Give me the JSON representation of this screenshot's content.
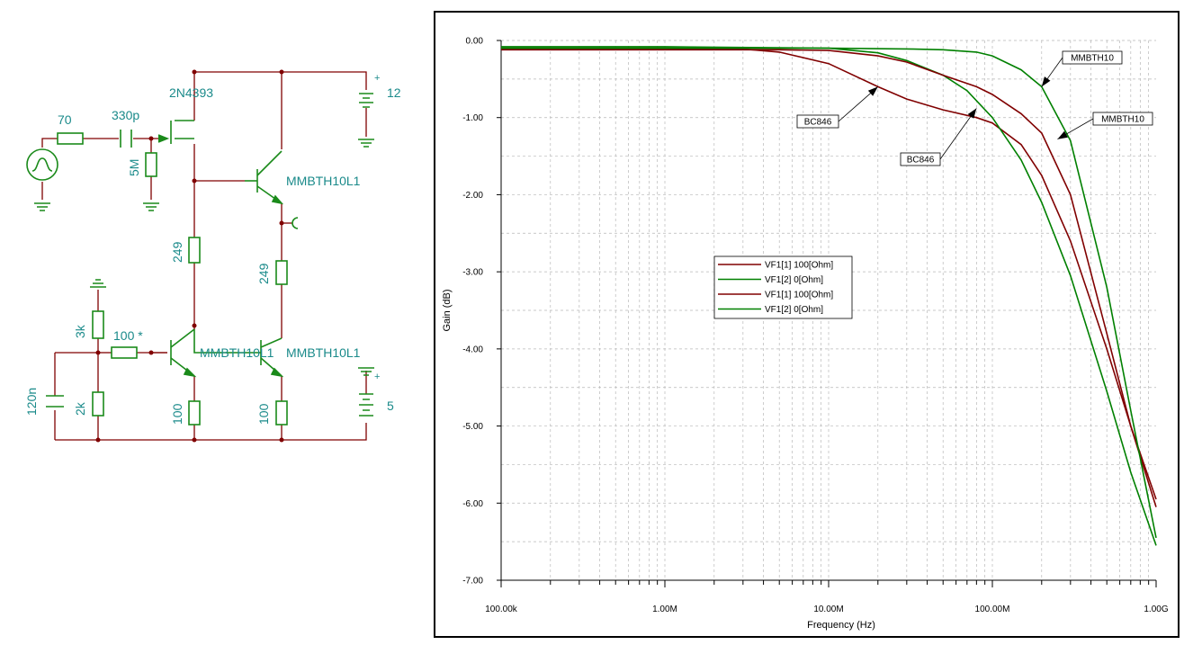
{
  "schematic": {
    "labels": {
      "source_resistor": "70",
      "coupling_cap": "330p",
      "gate_resistor": "5M",
      "fet": "2N4393",
      "supply_12": "12",
      "supply_5": "5",
      "q_follower": "MMBTH10L1",
      "r_249_left": "249",
      "r_249_right": "249",
      "r_3k": "3k",
      "r_2k": "2k",
      "r_100_star": "100 *",
      "cap_120n": "120n",
      "q_bottom_left": "MMBTH10L1",
      "q_bottom_right": "MMBTH10L1",
      "r_100_left": "100",
      "r_100_right": "100",
      "plus": "+"
    },
    "colors": {
      "wire": "#800000",
      "component": "#1a8a1a",
      "label": "#1a8a8a"
    }
  },
  "chart_data": {
    "type": "line",
    "xlabel": "Frequency (Hz)",
    "ylabel": "Gain (dB)",
    "xscale": "log",
    "xlim": [
      100000,
      1000000000
    ],
    "ylim": [
      -7.0,
      0.0
    ],
    "grid": true,
    "x_tick_labels": [
      "100.00k",
      "1.00M",
      "10.00M",
      "100.00M",
      "1.00G"
    ],
    "x_tick_values": [
      100000,
      1000000,
      10000000,
      100000000,
      1000000000
    ],
    "y_tick_labels": [
      "0.00",
      "-1.00",
      "-2.00",
      "-3.00",
      "-4.00",
      "-5.00",
      "-6.00",
      "-7.00"
    ],
    "y_tick_values": [
      0,
      -1,
      -2,
      -3,
      -4,
      -5,
      -6,
      -7
    ],
    "legend_placement": "center-left",
    "legend": [
      {
        "label": "VF1[1]  100[Ohm]",
        "color": "#800000"
      },
      {
        "label": "VF1[2]  0[Ohm]",
        "color": "#008000"
      },
      {
        "label": "VF1[1]  100[Ohm]",
        "color": "#800000"
      },
      {
        "label": "VF1[2]  0[Ohm]",
        "color": "#008000"
      }
    ],
    "series": [
      {
        "color": "#800000",
        "x": [
          100000,
          1000000,
          3000000,
          5000000,
          10000000,
          20000000,
          30000000,
          50000000,
          80000000,
          100000000,
          150000000,
          200000000,
          300000000,
          500000000,
          700000000,
          1000000000
        ],
        "y": [
          -0.1,
          -0.1,
          -0.11,
          -0.15,
          -0.3,
          -0.6,
          -0.76,
          -0.9,
          -1.0,
          -1.07,
          -1.35,
          -1.75,
          -2.6,
          -4.0,
          -5.0,
          -5.95
        ]
      },
      {
        "color": "#008000",
        "x": [
          100000,
          1000000,
          10000000,
          20000000,
          30000000,
          50000000,
          70000000,
          100000000,
          150000000,
          200000000,
          300000000,
          500000000,
          700000000,
          1000000000
        ],
        "y": [
          -0.08,
          -0.08,
          -0.1,
          -0.16,
          -0.26,
          -0.45,
          -0.65,
          -1.0,
          -1.55,
          -2.1,
          -3.05,
          -4.55,
          -5.6,
          -6.55
        ]
      },
      {
        "color": "#800000",
        "x": [
          100000,
          1000000,
          3000000,
          5000000,
          10000000,
          20000000,
          30000000,
          50000000,
          80000000,
          100000000,
          150000000,
          200000000,
          300000000,
          500000000,
          700000000,
          1000000000
        ],
        "y": [
          -0.12,
          -0.12,
          -0.12,
          -0.12,
          -0.13,
          -0.2,
          -0.28,
          -0.45,
          -0.6,
          -0.7,
          -0.95,
          -1.2,
          -2.0,
          -3.8,
          -5.0,
          -6.05
        ]
      },
      {
        "color": "#008000",
        "x": [
          100000,
          1000000,
          10000000,
          30000000,
          50000000,
          80000000,
          100000000,
          150000000,
          200000000,
          300000000,
          500000000,
          700000000,
          1000000000
        ],
        "y": [
          -0.1,
          -0.1,
          -0.1,
          -0.11,
          -0.12,
          -0.15,
          -0.2,
          -0.38,
          -0.6,
          -1.3,
          -3.2,
          -4.8,
          -6.45
        ]
      }
    ],
    "annotations": [
      {
        "text": "BC846",
        "at_x": 20000000,
        "at_y": -0.6
      },
      {
        "text": "BC846",
        "at_x": 80000000,
        "at_y": -0.88
      },
      {
        "text": "MMBTH10",
        "at_x": 200000000,
        "at_y": -0.6
      },
      {
        "text": "MMBTH10",
        "at_x": 250000000,
        "at_y": -1.28
      }
    ]
  }
}
